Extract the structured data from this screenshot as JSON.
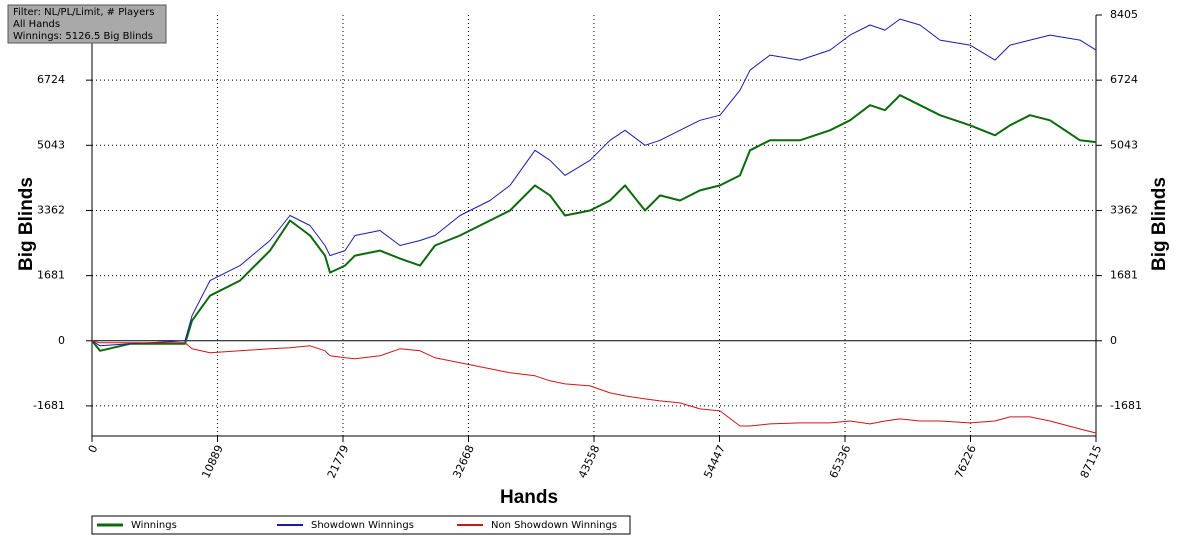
{
  "chart_data": {
    "type": "line",
    "annotations": [
      "Filter: NL/PL/Limit, # Players",
      "All Hands",
      "Winnings: 5126.5 Big Blinds"
    ],
    "x_label": "Hands",
    "y_label": "Big Blinds",
    "y2_label": "Big Blinds",
    "xlim": [
      0,
      87115
    ],
    "xticks": [
      0,
      10889,
      21779,
      32668,
      43558,
      54447,
      65336,
      76226,
      87115
    ],
    "ylim": [
      -2457,
      8405
    ],
    "yticks": [
      -1681,
      0,
      1681,
      3362,
      5043,
      6724
    ],
    "y2lim": [
      -2457,
      8405
    ],
    "y2ticks": [
      -1681,
      0,
      1681,
      3362,
      5043,
      6724,
      8405
    ],
    "grid": true,
    "legend": "bottom",
    "x": [
      0,
      694,
      3297,
      5033,
      8070,
      8677,
      10239,
      12842,
      15445,
      17181,
      18916,
      20218,
      20652,
      21953,
      22821,
      24990,
      26726,
      28461,
      29763,
      31932,
      34535,
      36270,
      38440,
      39741,
      41043,
      43212,
      44948,
      46249,
      47985,
      49286,
      51022,
      52757,
      54493,
      56228,
      57096,
      58831,
      61434,
      64038,
      65773,
      67508,
      68810,
      70112,
      71847,
      73582,
      76185,
      78355,
      79656,
      81392,
      83127,
      85730,
      87115
    ],
    "series": [
      {
        "name": "Winnings",
        "color": "#0b6a0b",
        "width": 2,
        "values": [
          0,
          -259,
          -78,
          -78,
          -78,
          517,
          1164,
          1552,
          2327,
          3103,
          2715,
          2198,
          1758,
          1939,
          2198,
          2327,
          2120,
          1939,
          2457,
          2715,
          3103,
          3362,
          4008,
          3750,
          3233,
          3362,
          3620,
          4008,
          3362,
          3750,
          3620,
          3879,
          4008,
          4267,
          4913,
          5172,
          5172,
          5431,
          5689,
          6077,
          5948,
          6336,
          6077,
          5819,
          5560,
          5301,
          5560,
          5819,
          5689,
          5172,
          5127
        ]
      },
      {
        "name": "Showdown Winnings",
        "color": "#1a1aae",
        "width": 1,
        "values": [
          0,
          -129,
          -78,
          -52,
          0,
          647,
          1552,
          1939,
          2586,
          3233,
          2974,
          2457,
          2198,
          2327,
          2715,
          2844,
          2457,
          2586,
          2715,
          3233,
          3620,
          4008,
          4913,
          4655,
          4267,
          4655,
          5172,
          5431,
          5043,
          5172,
          5431,
          5689,
          5819,
          6465,
          6982,
          7370,
          7241,
          7499,
          7887,
          8146,
          8016,
          8300,
          8146,
          7758,
          7629,
          7241,
          7629,
          7758,
          7887,
          7758,
          7499
        ]
      },
      {
        "name": "Non Showdown Winnings",
        "color": "#d21414",
        "width": 1,
        "values": [
          0,
          -52,
          -52,
          -52,
          -52,
          -207,
          -310,
          -259,
          -207,
          -181,
          -129,
          -259,
          -388,
          -440,
          -466,
          -388,
          -207,
          -259,
          -440,
          -569,
          -724,
          -827,
          -905,
          -1034,
          -1112,
          -1164,
          -1345,
          -1422,
          -1500,
          -1552,
          -1603,
          -1758,
          -1810,
          -2198,
          -2198,
          -2146,
          -2120,
          -2120,
          -2069,
          -2146,
          -2069,
          -2017,
          -2069,
          -2069,
          -2120,
          -2069,
          -1965,
          -1965,
          -2069,
          -2276,
          -2379
        ]
      }
    ]
  }
}
